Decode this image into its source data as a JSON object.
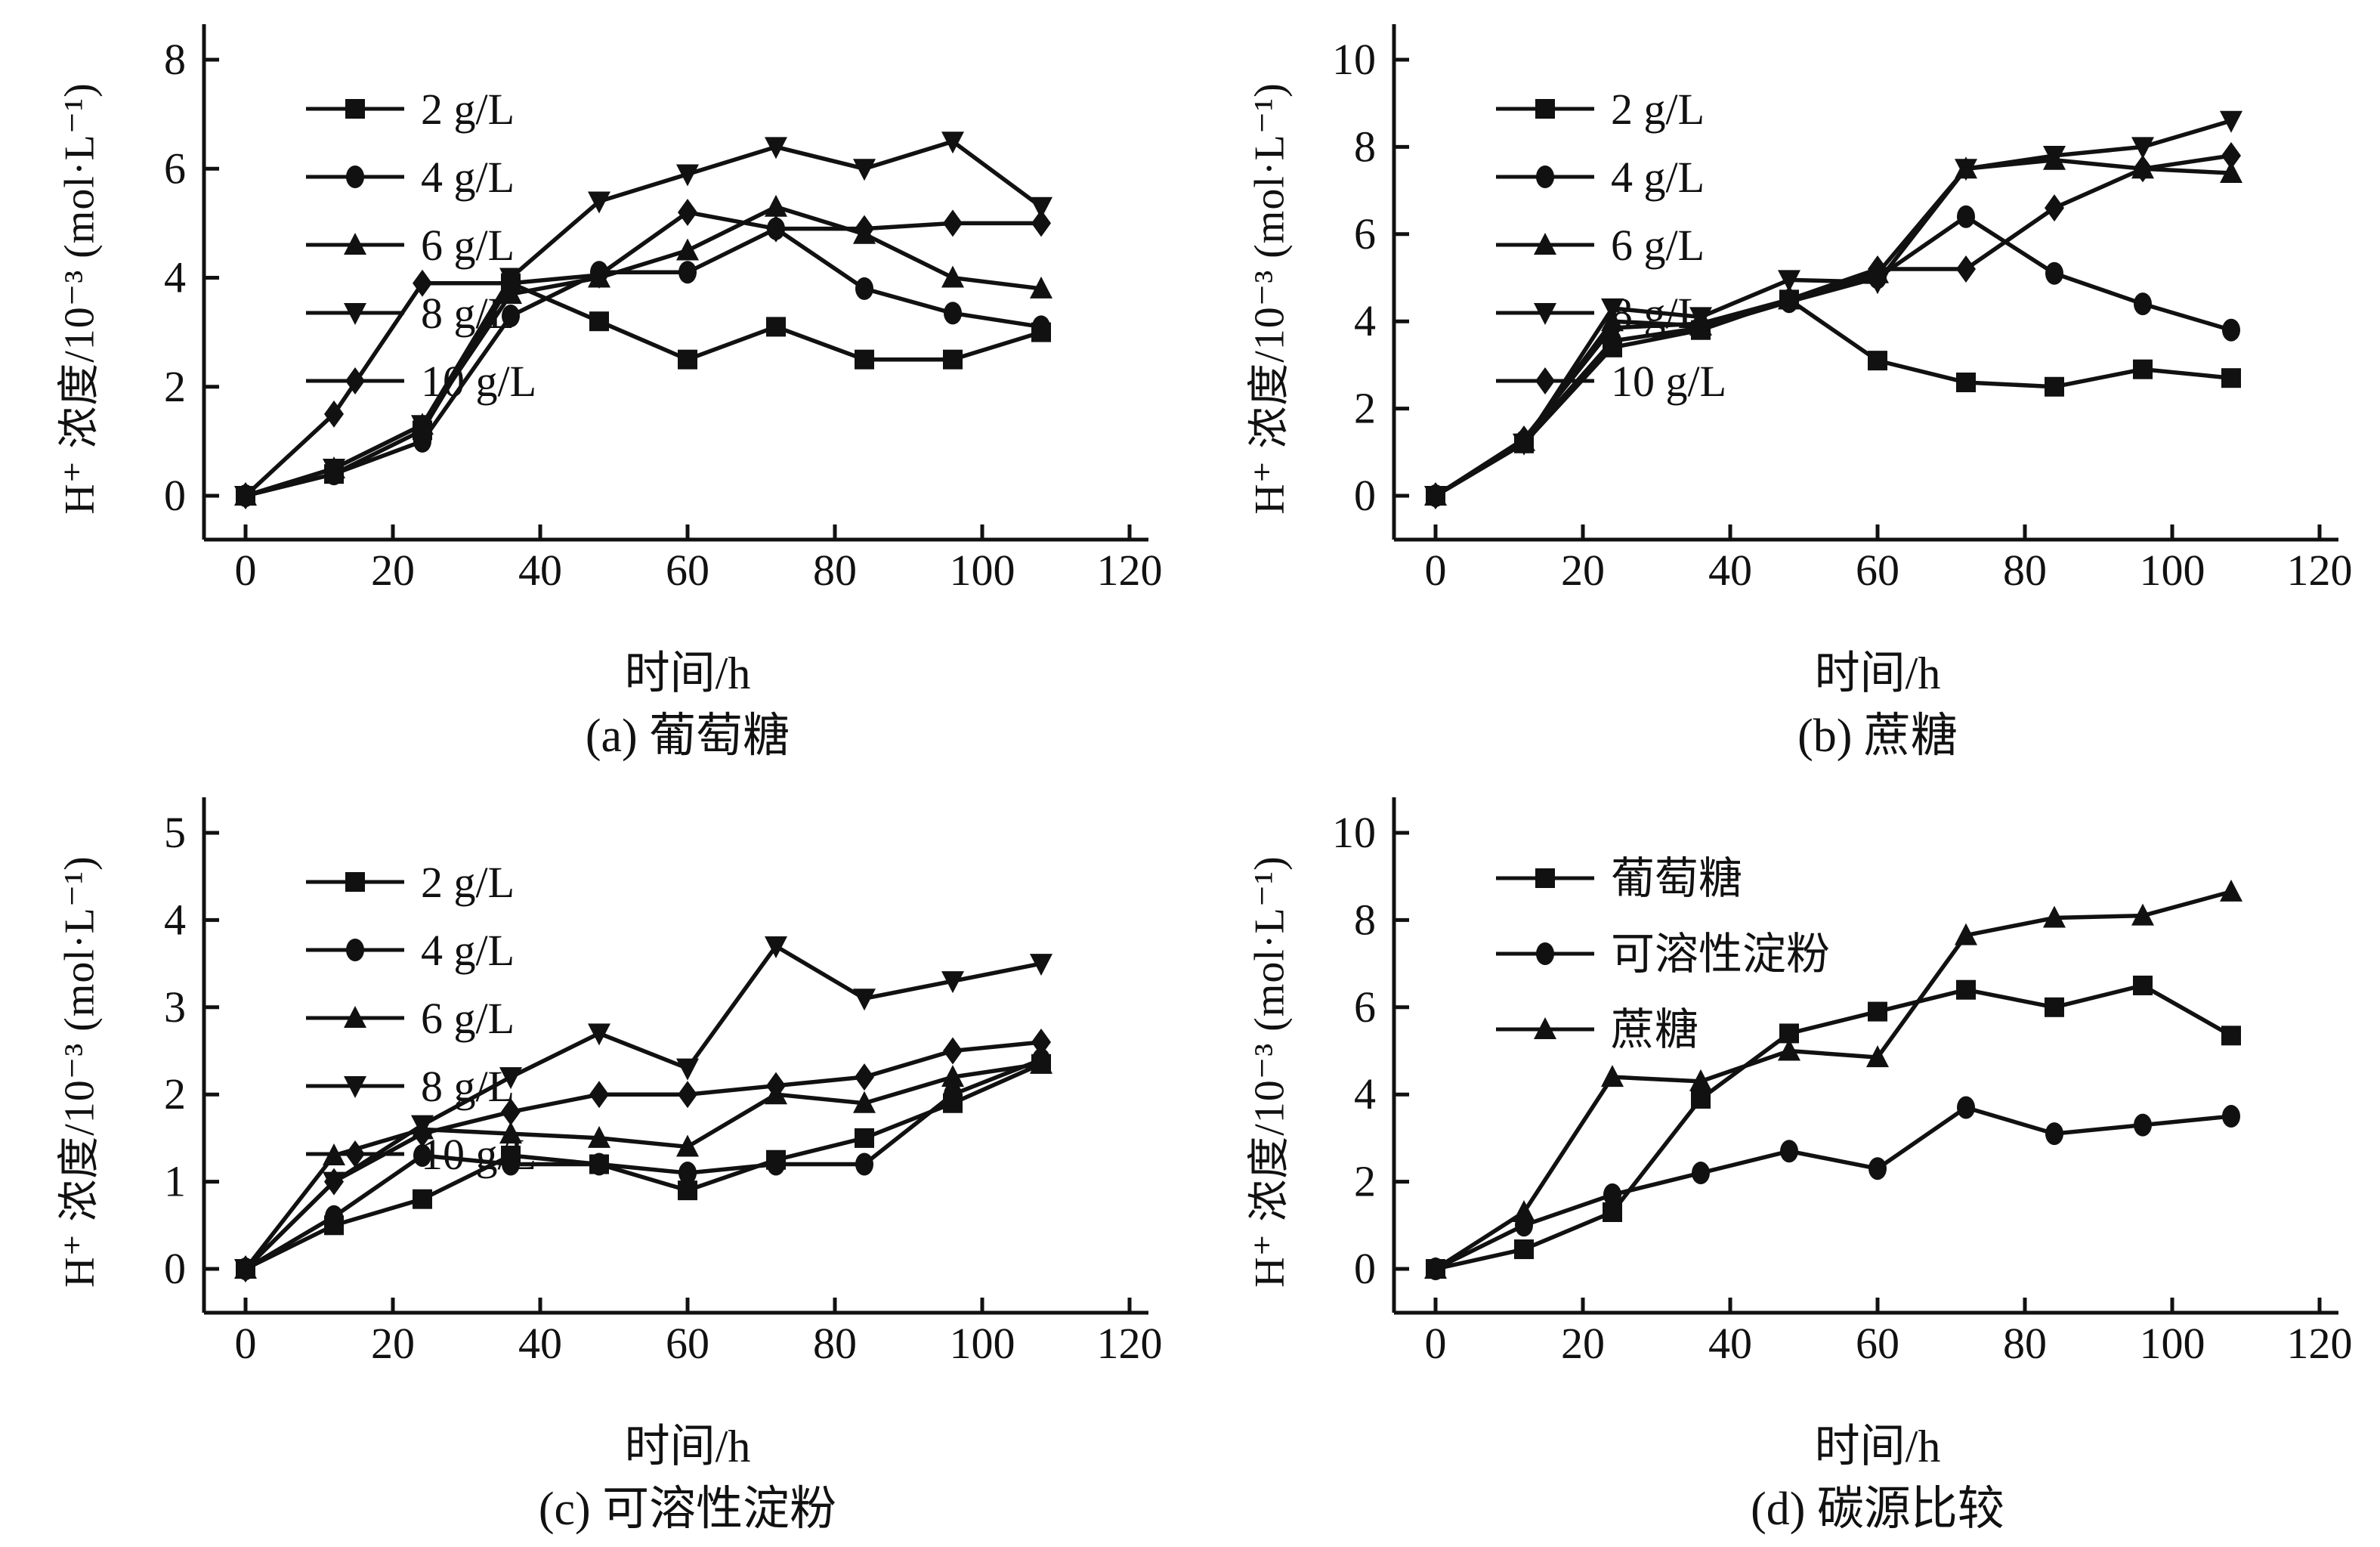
{
  "figure": {
    "background": "#ffffff",
    "ink_color": "#111111",
    "xlabel": "时间/h",
    "ylabel": "H⁺ 浓度/10⁻³ (mol·L⁻¹)"
  },
  "chart_data": [
    {
      "id": "a",
      "type": "line",
      "caption": "(a) 葡萄糖",
      "xlabel": "时间/h",
      "ylabel": "H⁺ 浓度/10⁻³ (mol·L⁻¹)",
      "x": [
        0,
        12,
        24,
        36,
        48,
        60,
        72,
        84,
        96,
        108
      ],
      "xlim": [
        0,
        120
      ],
      "xticks": [
        0,
        20,
        40,
        60,
        80,
        100,
        120
      ],
      "ylim": [
        0,
        8
      ],
      "yticks": [
        0,
        2,
        4,
        6,
        8
      ],
      "grid": "off",
      "legend_position": "top-left",
      "series": [
        {
          "name": "2 g/L",
          "marker": "square",
          "values": [
            0,
            0.4,
            1.2,
            3.9,
            3.2,
            2.5,
            3.1,
            2.5,
            2.5,
            3.0
          ]
        },
        {
          "name": "4 g/L",
          "marker": "circle",
          "values": [
            0,
            0.4,
            1.0,
            3.3,
            4.1,
            4.1,
            4.9,
            3.8,
            3.35,
            3.1
          ]
        },
        {
          "name": "6 g/L",
          "marker": "triangle-up",
          "values": [
            0,
            0.5,
            1.3,
            3.7,
            4.0,
            4.5,
            5.3,
            4.8,
            4.0,
            3.8
          ]
        },
        {
          "name": "8 g/L",
          "marker": "triangle-down",
          "values": [
            0,
            0.5,
            1.3,
            4.0,
            5.4,
            5.9,
            6.4,
            6.0,
            6.5,
            5.3
          ]
        },
        {
          "name": "10 g/L",
          "marker": "diamond",
          "values": [
            0,
            1.5,
            3.9,
            3.9,
            4.05,
            5.2,
            4.9,
            4.9,
            5.0,
            5.0
          ]
        }
      ]
    },
    {
      "id": "b",
      "type": "line",
      "caption": "(b) 蔗糖",
      "xlabel": "时间/h",
      "ylabel": "H⁺ 浓度/10⁻³ (mol·L⁻¹)",
      "x": [
        0,
        12,
        24,
        36,
        48,
        60,
        72,
        84,
        96,
        108
      ],
      "xlim": [
        0,
        120
      ],
      "xticks": [
        0,
        20,
        40,
        60,
        80,
        100,
        120
      ],
      "ylim": [
        0,
        10
      ],
      "yticks": [
        0,
        2,
        4,
        6,
        8,
        10
      ],
      "grid": "off",
      "legend_position": "top-left",
      "series": [
        {
          "name": "2 g/L",
          "marker": "square",
          "values": [
            0,
            1.2,
            3.4,
            3.8,
            4.5,
            3.1,
            2.6,
            2.5,
            2.9,
            2.7
          ]
        },
        {
          "name": "4 g/L",
          "marker": "circle",
          "values": [
            0,
            1.25,
            3.55,
            3.85,
            4.45,
            5.0,
            6.4,
            5.1,
            4.4,
            3.8
          ]
        },
        {
          "name": "6 g/L",
          "marker": "triangle-up",
          "values": [
            0,
            1.25,
            4.0,
            3.9,
            4.5,
            5.1,
            7.5,
            7.7,
            7.5,
            7.4
          ]
        },
        {
          "name": "8 g/L",
          "marker": "triangle-down",
          "values": [
            0,
            1.2,
            4.3,
            4.1,
            4.95,
            4.9,
            7.5,
            7.8,
            8.0,
            8.6
          ]
        },
        {
          "name": "10 g/L",
          "marker": "diamond",
          "values": [
            0,
            1.3,
            3.85,
            3.95,
            4.5,
            5.2,
            5.2,
            6.6,
            7.5,
            7.8
          ]
        }
      ]
    },
    {
      "id": "c",
      "type": "line",
      "caption": "(c) 可溶性淀粉",
      "xlabel": "时间/h",
      "ylabel": "H⁺ 浓度/10⁻³ (mol·L⁻¹)",
      "x": [
        0,
        12,
        24,
        36,
        48,
        60,
        72,
        84,
        96,
        108
      ],
      "xlim": [
        0,
        120
      ],
      "xticks": [
        0,
        20,
        40,
        60,
        80,
        100,
        120
      ],
      "ylim": [
        0,
        5
      ],
      "yticks": [
        0,
        1,
        2,
        3,
        4,
        5
      ],
      "grid": "off",
      "legend_position": "top-left",
      "series": [
        {
          "name": "2 g/L",
          "marker": "square",
          "values": [
            0,
            0.5,
            0.8,
            1.3,
            1.2,
            0.9,
            1.25,
            1.5,
            1.9,
            2.35
          ]
        },
        {
          "name": "4 g/L",
          "marker": "circle",
          "values": [
            0,
            0.6,
            1.3,
            1.2,
            1.2,
            1.1,
            1.2,
            1.2,
            2.0,
            2.4
          ]
        },
        {
          "name": "6 g/L",
          "marker": "triangle-up",
          "values": [
            0,
            1.3,
            1.6,
            1.55,
            1.5,
            1.4,
            2.0,
            1.9,
            2.2,
            2.35
          ]
        },
        {
          "name": "8 g/L",
          "marker": "triangle-down",
          "values": [
            0,
            1.0,
            1.65,
            2.2,
            2.7,
            2.3,
            3.7,
            3.1,
            3.3,
            3.5
          ]
        },
        {
          "name": "10 g/L",
          "marker": "diamond",
          "values": [
            0,
            1.0,
            1.55,
            1.8,
            2.0,
            2.0,
            2.1,
            2.2,
            2.5,
            2.6
          ]
        }
      ]
    },
    {
      "id": "d",
      "type": "line",
      "caption": "(d) 碳源比较",
      "xlabel": "时间/h",
      "ylabel": "H⁺ 浓度/10⁻³ (mol·L⁻¹)",
      "x": [
        0,
        12,
        24,
        36,
        48,
        60,
        72,
        84,
        96,
        108
      ],
      "xlim": [
        0,
        120
      ],
      "xticks": [
        0,
        20,
        40,
        60,
        80,
        100,
        120
      ],
      "ylim": [
        0,
        10
      ],
      "yticks": [
        0,
        2,
        4,
        6,
        8,
        10
      ],
      "grid": "off",
      "legend_position": "top-left",
      "series": [
        {
          "name": "葡萄糖",
          "marker": "square",
          "values": [
            0,
            0.45,
            1.3,
            3.9,
            5.4,
            5.9,
            6.4,
            6.0,
            6.5,
            5.35
          ]
        },
        {
          "name": "可溶性淀粉",
          "marker": "circle",
          "values": [
            0,
            1.0,
            1.7,
            2.2,
            2.7,
            2.3,
            3.7,
            3.1,
            3.3,
            3.5
          ]
        },
        {
          "name": "蔗糖",
          "marker": "triangle-up",
          "values": [
            0,
            1.3,
            4.4,
            4.3,
            5.0,
            4.85,
            7.65,
            8.05,
            8.1,
            8.65
          ]
        }
      ]
    }
  ]
}
